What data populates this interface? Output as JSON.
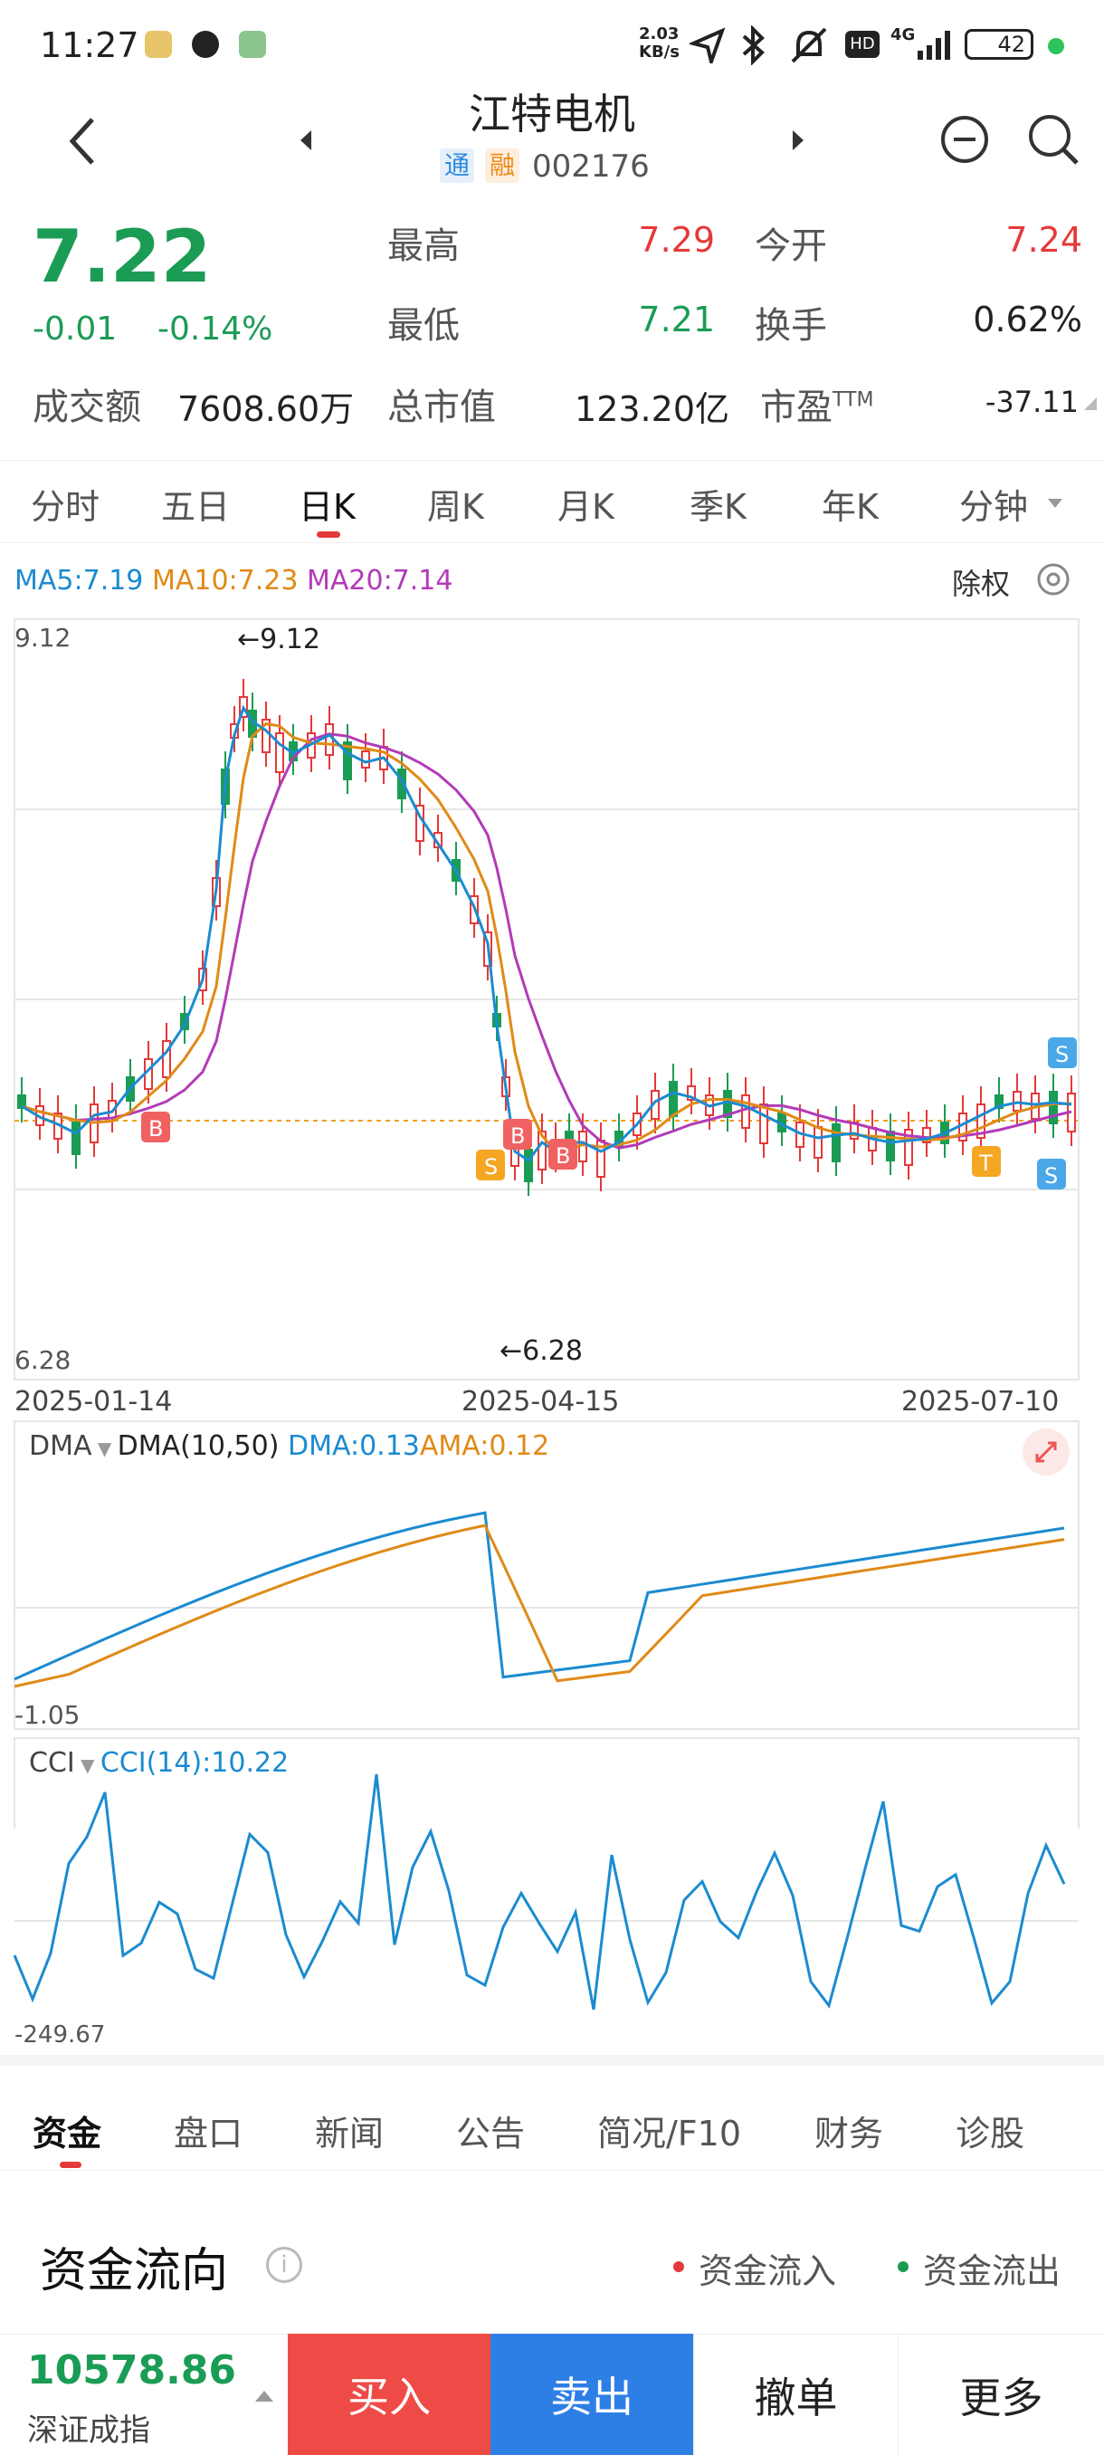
{
  "status": {
    "time": "11:27",
    "net_speed_top": "2.03",
    "net_speed_bottom": "KB/s",
    "network": "4G",
    "battery": "42"
  },
  "header": {
    "title": "江特电机",
    "tag_tong": "通",
    "tag_rong": "融",
    "code": "002176"
  },
  "quote": {
    "price": "7.22",
    "change": "-0.01",
    "change_pct": "-0.14%",
    "high_label": "最高",
    "high": "7.29",
    "open_label": "今开",
    "open": "7.24",
    "low_label": "最低",
    "low": "7.21",
    "turnover_label": "换手",
    "turnover": "0.62%",
    "amount_label": "成交额",
    "amount": "7608.60万",
    "mcap_label": "总市值",
    "mcap": "123.20亿",
    "pe_label": "市盈",
    "pe_sup": "TTM",
    "pe": "-37.11"
  },
  "tabs": [
    "分时",
    "五日",
    "日K",
    "周K",
    "月K",
    "季K",
    "年K",
    "分钟"
  ],
  "active_tab": "日K",
  "chart": {
    "ma5": "MA5:7.19",
    "ma10": "MA10:7.23",
    "ma20": "MA20:7.14",
    "chuquan": "除权",
    "y_top": "9.12",
    "y_bottom": "6.28",
    "peak_label": "←9.12",
    "trough_label": "←6.28",
    "dates": [
      "2025-01-14",
      "2025-04-15",
      "2025-07-10"
    ],
    "dma_name": "DMA",
    "dma_params": "DMA(10,50)",
    "dma_val": "DMA:0.13",
    "ama_val": "AMA:0.12",
    "dma_low": "-1.05",
    "cci_name": "CCI",
    "cci_val": "CCI(14):10.22",
    "cci_low": "-249.67",
    "colors": {
      "ma5": "#1b8bd0",
      "ma10": "#e08a17",
      "ma20": "#b23bb8",
      "up": "#e5393a",
      "down": "#1a9c55"
    }
  },
  "chart_data": {
    "type": "line",
    "x": [
      "2025-01-14",
      "2025-04-15",
      "2025-07-10"
    ],
    "price_range": [
      6.28,
      9.12
    ],
    "high": 9.12,
    "low": 6.28,
    "series": [
      {
        "name": "MA5",
        "value": 7.19
      },
      {
        "name": "MA10",
        "value": 7.23
      },
      {
        "name": "MA20",
        "value": 7.14
      },
      {
        "name": "DMA",
        "value": 0.13
      },
      {
        "name": "AMA",
        "value": 0.12
      },
      {
        "name": "CCI",
        "value": 10.22
      }
    ]
  },
  "bottom_tabs": [
    "资金",
    "盘口",
    "新闻",
    "公告",
    "简况/F10",
    "财务",
    "诊股"
  ],
  "flow": {
    "title": "资金流向",
    "inflow": "资金流入",
    "outflow": "资金流出"
  },
  "bottom_bar": {
    "index_value": "10578.86",
    "index_name": "深证成指",
    "buy": "买入",
    "sell": "卖出",
    "cancel": "撤单",
    "more": "更多"
  }
}
